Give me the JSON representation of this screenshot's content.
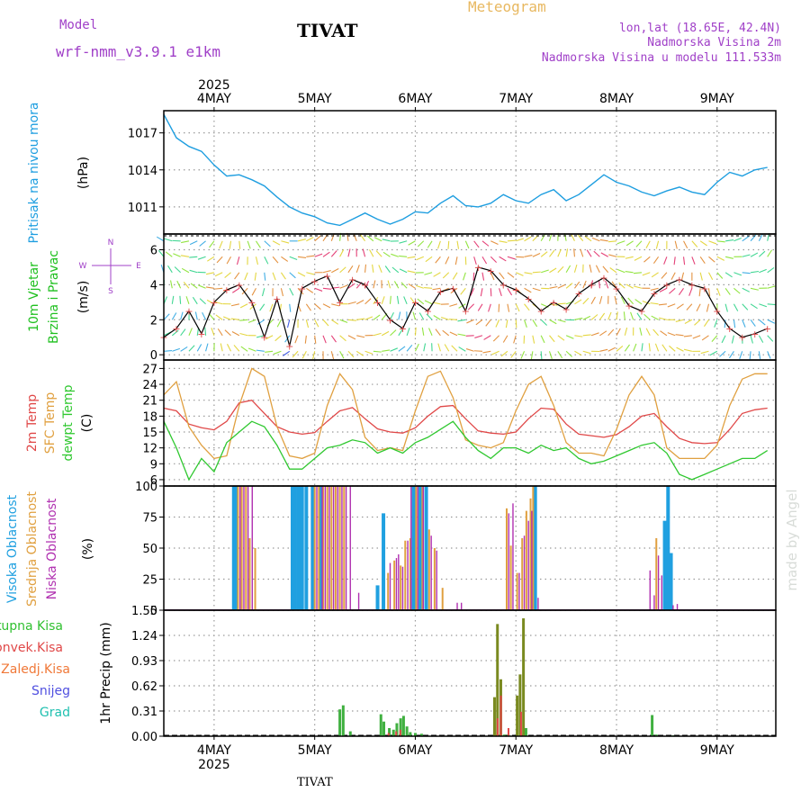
{
  "header": {
    "model_label": "Model",
    "model_name": "wrf-nmm_v3.9.1 e1km",
    "title": "TIVAT",
    "meteogram_label": "Meteogram",
    "lonlat": "lon,lat (18.65E, 42.4N)",
    "elevation": "Nadmorska Visina 2m",
    "model_elevation": "Nadmorska Visina u modelu 111.533m",
    "bottom_label": "TIVAT",
    "credit": "made by Angel"
  },
  "time_axis": {
    "year_label": "2025",
    "days": [
      "4MAY",
      "5MAY",
      "6MAY",
      "7MAY",
      "8MAY",
      "9MAY"
    ]
  },
  "colors": {
    "pressure": "#1e9ee0",
    "temp2m": "#e04848",
    "sfc": "#e0a040",
    "dewpt": "#30c830",
    "high_cloud": "#20a0e0",
    "mid_cloud": "#e0a040",
    "low_cloud": "#b030b0",
    "total_precip": "#40b040",
    "conv_precip": "#e04848"
  },
  "chart_data": [
    {
      "type": "line",
      "panel": "pressure",
      "ylabel": "Pritisak na nivou mora",
      "unit": "(hPa)",
      "yticks": [
        1011,
        1014,
        1017
      ],
      "ylim": [
        1008.8,
        1018.8
      ],
      "x_hours": [
        0,
        3,
        6,
        9,
        12,
        15,
        18,
        21,
        24,
        27,
        30,
        33,
        36,
        39,
        42,
        45,
        48,
        51,
        54,
        57,
        60,
        63,
        66,
        69,
        72,
        75,
        78,
        81,
        84,
        87,
        90,
        93,
        96,
        99,
        102,
        105,
        108,
        111,
        114,
        117,
        120,
        123,
        126,
        129,
        132,
        135,
        138,
        141,
        144
      ],
      "series": [
        {
          "name": "Pritisak na nivou mora",
          "values": [
            1018.5,
            1016.6,
            1015.9,
            1015.5,
            1014.4,
            1013.5,
            1013.6,
            1013.2,
            1012.7,
            1011.8,
            1011.0,
            1010.5,
            1010.2,
            1009.7,
            1009.5,
            1010.0,
            1010.5,
            1010.0,
            1009.6,
            1010.0,
            1010.6,
            1010.5,
            1011.3,
            1011.9,
            1011.1,
            1011.0,
            1011.3,
            1012.0,
            1011.5,
            1011.3,
            1012.0,
            1012.4,
            1011.5,
            1012.0,
            1012.8,
            1013.6,
            1013.0,
            1012.7,
            1012.2,
            1011.9,
            1012.3,
            1012.6,
            1012.2,
            1012.0,
            1013.0,
            1013.8,
            1013.5,
            1014.0,
            1014.2
          ]
        }
      ]
    },
    {
      "type": "line",
      "panel": "wind",
      "ylabel": "10m Vjetar Brzina i Pravac",
      "unit": "(m/s)",
      "compass": {
        "n": "N",
        "s": "S",
        "w": "W",
        "e": "E"
      },
      "yticks": [
        0,
        2,
        4,
        6
      ],
      "ylim": [
        -0.3,
        6.9
      ],
      "x_hours": [
        0,
        3,
        6,
        9,
        12,
        15,
        18,
        21,
        24,
        27,
        30,
        33,
        36,
        39,
        42,
        45,
        48,
        51,
        54,
        57,
        60,
        63,
        66,
        69,
        72,
        75,
        78,
        81,
        84,
        87,
        90,
        93,
        96,
        99,
        102,
        105,
        108,
        111,
        114,
        117,
        120,
        123,
        126,
        129,
        132,
        135,
        138,
        141,
        144
      ],
      "series": [
        {
          "name": "10m Vjetar",
          "values": [
            1.0,
            1.5,
            2.5,
            1.2,
            3.0,
            3.7,
            4.0,
            3.0,
            1.0,
            3.2,
            0.5,
            3.8,
            4.2,
            4.5,
            3.0,
            4.3,
            4.0,
            3.0,
            2.0,
            1.5,
            3.0,
            2.5,
            3.6,
            3.8,
            2.5,
            5.0,
            4.8,
            4.0,
            3.7,
            3.2,
            2.5,
            3.0,
            2.6,
            3.5,
            4.0,
            4.4,
            3.8,
            2.8,
            2.5,
            3.5,
            4.0,
            4.3,
            4.0,
            3.8,
            2.5,
            1.5,
            1.0,
            1.2,
            1.5
          ]
        }
      ]
    },
    {
      "type": "line",
      "panel": "temperature",
      "ylabel": "2m Temp / SFC Temp / dewpt Temp",
      "legend": [
        "2m Temp",
        "SFC Temp",
        "dewpt Temp"
      ],
      "unit": "(C)",
      "yticks": [
        6,
        9,
        12,
        15,
        18,
        21,
        24,
        27
      ],
      "ylim": [
        4.8,
        28.6
      ],
      "x_hours": [
        0,
        3,
        6,
        9,
        12,
        15,
        18,
        21,
        24,
        27,
        30,
        33,
        36,
        39,
        42,
        45,
        48,
        51,
        54,
        57,
        60,
        63,
        66,
        69,
        72,
        75,
        78,
        81,
        84,
        87,
        90,
        93,
        96,
        99,
        102,
        105,
        108,
        111,
        114,
        117,
        120,
        123,
        126,
        129,
        132,
        135,
        138,
        141,
        144
      ],
      "series": [
        {
          "name": "2m Temp",
          "values": [
            19.5,
            19.0,
            16.5,
            15.8,
            15.4,
            17.0,
            20.5,
            21.0,
            18.5,
            16.0,
            15.0,
            14.6,
            14.9,
            17.0,
            19.0,
            19.6,
            17.5,
            15.6,
            15.0,
            14.8,
            15.8,
            18.0,
            19.8,
            20.0,
            17.5,
            15.2,
            14.8,
            14.6,
            15.0,
            17.5,
            19.5,
            19.3,
            16.5,
            14.6,
            14.3,
            14.0,
            14.5,
            16.0,
            18.0,
            18.5,
            16.0,
            13.8,
            13.0,
            12.8,
            13.0,
            15.5,
            18.5,
            19.2,
            19.5
          ]
        },
        {
          "name": "SFC Temp",
          "values": [
            22.0,
            24.5,
            16.0,
            12.5,
            10.0,
            10.5,
            20.0,
            27.0,
            25.5,
            16.0,
            10.5,
            10.0,
            11.0,
            20.0,
            26.0,
            23.0,
            14.0,
            11.5,
            12.0,
            11.5,
            19.0,
            25.5,
            26.5,
            21.5,
            13.5,
            12.5,
            12.0,
            13.0,
            19.0,
            24.0,
            25.5,
            20.0,
            13.0,
            11.0,
            11.0,
            10.5,
            15.5,
            22.0,
            25.5,
            22.0,
            12.0,
            10.0,
            10.0,
            10.0,
            12.5,
            20.0,
            25.0,
            26.0,
            26.0
          ]
        },
        {
          "name": "dewpt Temp",
          "values": [
            17.0,
            12.0,
            6.0,
            10.0,
            7.5,
            13.0,
            15.0,
            17.0,
            16.0,
            12.5,
            8.0,
            8.0,
            10.0,
            12.0,
            12.5,
            13.5,
            13.0,
            11.0,
            12.0,
            11.0,
            13.0,
            14.0,
            15.5,
            17.0,
            14.0,
            11.5,
            10.0,
            12.0,
            12.0,
            11.0,
            12.5,
            11.5,
            12.0,
            10.0,
            9.0,
            9.5,
            10.5,
            11.5,
            12.5,
            13.0,
            11.0,
            7.0,
            6.0,
            7.0,
            8.0,
            9.0,
            10.0,
            10.0,
            11.5
          ]
        }
      ]
    },
    {
      "type": "bar",
      "panel": "cloud",
      "ylabel": "Visoka Oblacnost / Srednja Oblacnost / Niska Oblacnost",
      "legend": [
        "Visoka Oblacnost",
        "Srednja Oblacnost",
        "Niska Oblacnost"
      ],
      "unit": "(%)",
      "yticks": [
        0,
        25,
        50,
        75,
        100
      ],
      "ylim": [
        0,
        100
      ],
      "series": [
        {
          "name": "Visoka Oblacnost",
          "points": [
            [
              16.7,
              100
            ],
            [
              17.2,
              100
            ],
            [
              30.7,
              100
            ],
            [
              31.2,
              100
            ],
            [
              32.0,
              100
            ],
            [
              32.5,
              100
            ],
            [
              33.0,
              100
            ],
            [
              34.0,
              100
            ],
            [
              35.5,
              100
            ],
            [
              37.5,
              100
            ],
            [
              51.0,
              20
            ],
            [
              52.4,
              78
            ],
            [
              59.6,
              100
            ],
            [
              61.2,
              100
            ],
            [
              62.6,
              100
            ],
            [
              88.6,
              100
            ],
            [
              119.5,
              72
            ],
            [
              120.3,
              100
            ],
            [
              121.0,
              46
            ]
          ]
        },
        {
          "name": "Srednja Oblacnost",
          "points": [
            [
              17.7,
              100
            ],
            [
              18.6,
              100
            ],
            [
              19.6,
              100
            ],
            [
              20.5,
              58
            ],
            [
              21.8,
              50
            ],
            [
              36.0,
              100
            ],
            [
              37.0,
              100
            ],
            [
              38.0,
              100
            ],
            [
              39.0,
              100
            ],
            [
              40.0,
              100
            ],
            [
              41.0,
              100
            ],
            [
              42.0,
              100
            ],
            [
              43.0,
              100
            ],
            [
              53.5,
              30
            ],
            [
              55.0,
              40
            ],
            [
              56.5,
              36
            ],
            [
              57.6,
              56
            ],
            [
              58.8,
              58
            ],
            [
              60.2,
              100
            ],
            [
              61.7,
              100
            ],
            [
              63.3,
              65
            ],
            [
              64.6,
              50
            ],
            [
              66.5,
              18
            ],
            [
              81.8,
              82
            ],
            [
              82.8,
              52
            ],
            [
              84.3,
              30
            ],
            [
              85.5,
              58
            ],
            [
              86.5,
              80
            ],
            [
              87.5,
              90
            ],
            [
              88.1,
              100
            ],
            [
              117.5,
              58
            ]
          ]
        },
        {
          "name": "Niska Oblacnost",
          "points": [
            [
              18.2,
              100
            ],
            [
              19.1,
              100
            ],
            [
              20.1,
              100
            ],
            [
              21.1,
              100
            ],
            [
              36.5,
              100
            ],
            [
              37.8,
              100
            ],
            [
              38.5,
              100
            ],
            [
              39.5,
              100
            ],
            [
              40.5,
              100
            ],
            [
              41.5,
              100
            ],
            [
              42.5,
              100
            ],
            [
              43.5,
              100
            ],
            [
              44.5,
              100
            ],
            [
              46.5,
              14
            ],
            [
              54.0,
              38
            ],
            [
              55.5,
              42
            ],
            [
              56.0,
              45
            ],
            [
              57.0,
              35
            ],
            [
              58.2,
              56
            ],
            [
              59.0,
              100
            ],
            [
              60.6,
              100
            ],
            [
              61.9,
              100
            ],
            [
              63.8,
              60
            ],
            [
              65.1,
              48
            ],
            [
              70.0,
              6
            ],
            [
              71.0,
              6
            ],
            [
              82.3,
              78
            ],
            [
              83.3,
              86
            ],
            [
              84.8,
              30
            ],
            [
              86.0,
              60
            ],
            [
              87.0,
              72
            ],
            [
              87.8,
              80
            ],
            [
              89.3,
              10
            ],
            [
              116.0,
              32
            ],
            [
              117.0,
              12
            ],
            [
              118.0,
              44
            ],
            [
              118.8,
              28
            ],
            [
              121.5,
              4
            ],
            [
              122.5,
              5
            ]
          ]
        }
      ]
    },
    {
      "type": "bar",
      "panel": "precip",
      "ylabel": "1hr Precip (mm)",
      "legend": [
        "Ukupna Kisa",
        "Konvek.Kisa",
        "Zaledj.Kisa",
        "Snijeg",
        "Grad"
      ],
      "yticks": [
        0,
        0.31,
        0.62,
        0.93,
        1.24,
        1.55
      ],
      "ylim": [
        0,
        1.55
      ],
      "series": [
        {
          "name": "Ukupna Kisa",
          "points": [
            [
              42.0,
              0.33
            ],
            [
              42.8,
              0.38
            ],
            [
              44.5,
              0.06
            ],
            [
              51.8,
              0.27
            ],
            [
              52.5,
              0.18
            ],
            [
              53.8,
              0.1
            ],
            [
              54.8,
              0.08
            ],
            [
              55.6,
              0.16
            ],
            [
              56.5,
              0.22
            ],
            [
              57.2,
              0.25
            ],
            [
              58.0,
              0.12
            ],
            [
              58.8,
              0.05
            ],
            [
              60.0,
              0.04
            ],
            [
              61.5,
              0.03
            ],
            [
              78.9,
              0.48
            ],
            [
              79.6,
              1.38
            ],
            [
              80.4,
              0.7
            ],
            [
              81.2,
              0.02
            ],
            [
              82.2,
              0.02
            ],
            [
              84.3,
              0.5
            ],
            [
              85.0,
              0.76
            ],
            [
              85.8,
              1.45
            ],
            [
              86.4,
              0.1
            ],
            [
              116.5,
              0.26
            ],
            [
              117.5,
              0.02
            ],
            [
              121.5,
              0.01
            ]
          ]
        },
        {
          "name": "Konvek.Kisa",
          "points": [
            [
              53.2,
              0.04
            ],
            [
              55.0,
              0.06
            ],
            [
              56.0,
              0.08
            ],
            [
              79.2,
              0.22
            ],
            [
              80.0,
              0.5
            ],
            [
              81.8,
              0.1
            ],
            [
              84.8,
              0.3
            ]
          ]
        }
      ]
    }
  ]
}
